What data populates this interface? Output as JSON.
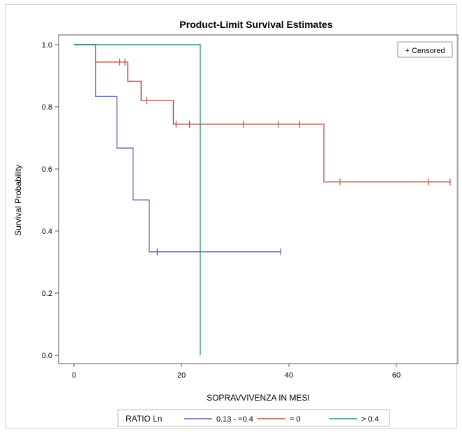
{
  "chart_data": {
    "type": "line",
    "step": true,
    "title": "Product-Limit Survival Estimates",
    "xlabel": "SOPRAVVIVENZA IN MESI",
    "ylabel": "Survival Probability",
    "xlim": [
      -3,
      70
    ],
    "ylim": [
      -0.01,
      1.04
    ],
    "xticks": [
      0,
      20,
      40,
      60
    ],
    "yticks": [
      0.0,
      0.2,
      0.4,
      0.6,
      0.8,
      1.0
    ],
    "xtick_labels": [
      "0",
      "20",
      "40",
      "60"
    ],
    "ytick_labels": [
      "0.0",
      "0.2",
      "0.4",
      "0.6",
      "0.8",
      "1.0"
    ],
    "grid": false,
    "inset_legend": "+ Censored",
    "legend_title": "RATIO Ln",
    "legend_position": "bottom",
    "series": [
      {
        "name": "0.13 - =0.4",
        "color": "#5a64b0",
        "x": [
          0,
          4,
          8,
          11,
          14,
          38.5
        ],
        "y": [
          1.0,
          0.833,
          0.667,
          0.5,
          0.333,
          0.333
        ],
        "censored": [
          [
            15.5,
            0.333
          ],
          [
            38.5,
            0.333
          ]
        ]
      },
      {
        "name": "= 0",
        "color": "#c0504d",
        "x": [
          0,
          4,
          10,
          12.5,
          18.5,
          46.5,
          70
        ],
        "y": [
          1.0,
          0.944,
          0.882,
          0.82,
          0.744,
          0.558,
          0.558
        ],
        "censored": [
          [
            8.5,
            0.944
          ],
          [
            9.5,
            0.944
          ],
          [
            13.5,
            0.82
          ],
          [
            19,
            0.744
          ],
          [
            21.5,
            0.744
          ],
          [
            31.5,
            0.744
          ],
          [
            38,
            0.744
          ],
          [
            42,
            0.744
          ],
          [
            49.5,
            0.558
          ],
          [
            66,
            0.558
          ],
          [
            70,
            0.558
          ]
        ]
      },
      {
        "name": "> 0.4",
        "color": "#2a9178",
        "x": [
          0,
          23.5,
          23.5
        ],
        "y": [
          1.0,
          1.0,
          0.0
        ],
        "censored": []
      }
    ]
  }
}
